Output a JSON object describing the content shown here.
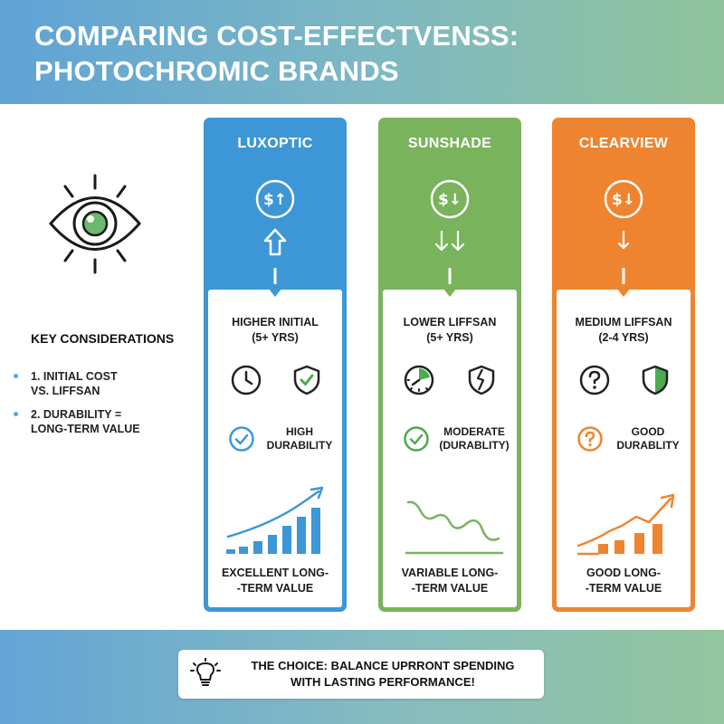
{
  "header": {
    "title": "COMPARING COST-EFFECTVENSS: PHOTOCHROMIC BRANDS"
  },
  "sidebar": {
    "title": "KEY CONSIDERATIONS",
    "items": [
      {
        "label": "1. INITIAL COST\nVS. LIFFSAN"
      },
      {
        "label": "2. DURABILITY =\nLONG-TERM VALUE"
      }
    ]
  },
  "cards": [
    {
      "name": "LUXOPTIC",
      "color": "#3d97d6",
      "coin_label": "$↑",
      "lifespan": "HIGHER INITIAL\n(5+ YRS)",
      "icons": [
        "clock-icon",
        "shield-check-icon"
      ],
      "durability": "HIGH\nDURABILITY",
      "durability_icon": "check-circle-icon",
      "value": "EXCELLENT LONG-\n-TERM VALUE",
      "trend": "rising-bars"
    },
    {
      "name": "SUNSHADE",
      "color": "#79b35c",
      "coin_label": "$↓",
      "lifespan": "LOWER LIFFSAN\n(5+ YRS)",
      "icons": [
        "pie-clock-icon",
        "cracked-shield-icon"
      ],
      "durability": "MODERATE\n(DURABLITY)",
      "durability_icon": "check-circle-icon",
      "value": "VARIABLE LONG-\n-TERM VALUE",
      "trend": "wavy-line"
    },
    {
      "name": "CLEARVIEW",
      "color": "#ee8430",
      "coin_label": "$↓",
      "lifespan": "MEDIUM LIFFSAN\n(2-4 YRS)",
      "icons": [
        "question-circle-icon",
        "half-shield-icon"
      ],
      "durability": "GOOD\nDURABLITY",
      "durability_icon": "question-circle-icon",
      "value": "GOOD LONG-\n-TERM VALUE",
      "trend": "rising-bars"
    }
  ],
  "footer": {
    "text": "THE CHOICE: BALANCE UPRRONT SPENDING\nWITH LASTING PERFORMANCE!"
  }
}
